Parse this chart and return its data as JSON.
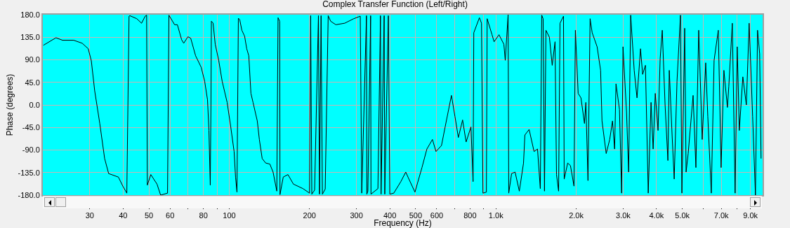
{
  "chart_data": {
    "type": "line",
    "title": "Complex Transfer Function (Left/Right)",
    "xlabel": "Frequency (Hz)",
    "ylabel": "Phase (degrees)",
    "log": "x",
    "grid": true,
    "marker": "none",
    "line_style": "solid",
    "color": "#000000",
    "xlim": [
      20,
      10000
    ],
    "xticks": [
      30,
      40,
      50,
      60,
      {
        "value": 70,
        "label": null
      },
      80,
      {
        "value": 90,
        "label": null
      },
      100,
      200,
      300,
      400,
      500,
      600,
      {
        "value": 700,
        "label": null
      },
      800,
      {
        "value": 900,
        "label": null
      },
      {
        "value": 1000,
        "label": "1.0k"
      },
      {
        "value": 2000,
        "label": "2.0k"
      },
      {
        "value": 3000,
        "label": "3.0k"
      },
      {
        "value": 4000,
        "label": "4.0k"
      },
      {
        "value": 5000,
        "label": "5.0k"
      },
      {
        "value": 6000,
        "label": null
      },
      {
        "value": 7000,
        "label": "7.0k"
      },
      {
        "value": 8000,
        "label": null
      },
      {
        "value": 9000,
        "label": "9.0k"
      }
    ],
    "ylim": [
      -180,
      180
    ],
    "yticks": [
      {
        "value": -180,
        "label": "-180.0"
      },
      {
        "value": -135,
        "label": "-135.0"
      },
      {
        "value": -90,
        "label": "-90.0"
      },
      {
        "value": -45,
        "label": "-45.0"
      },
      {
        "value": 0,
        "label": "0.0"
      },
      {
        "value": 45,
        "label": "45.0"
      },
      {
        "value": 90,
        "label": "90.0"
      },
      {
        "value": 135,
        "label": "135.0"
      },
      {
        "value": 180,
        "label": "180.0"
      }
    ],
    "x": [
      20.1,
      22.4,
      23.7,
      26.1,
      28.1,
      29.6,
      30.4,
      31.3,
      32.7,
      34.1,
      35.3,
      38.4,
      39.9,
      41.3,
      42.1,
      42.4,
      45.0,
      46.9,
      48.4,
      49.0,
      49.3,
      50.8,
      53.6,
      55.3,
      58.7,
      59.4,
      62.4,
      63.9,
      66.3,
      67.5,
      70.0,
      71.7,
      74.8,
      78.5,
      80.9,
      82.9,
      83.9,
      84.9,
      85.4,
      85.7,
      87.0,
      88.6,
      91.3,
      94.1,
      98.2,
      101.2,
      104.3,
      105.6,
      106.9,
      108.2,
      109.5,
      111.5,
      114.2,
      116.3,
      118.4,
      120.6,
      122.8,
      127.4,
      129.7,
      132.9,
      137,
      142,
      146,
      150.8,
      152.4,
      154.6,
      155,
      159.4,
      166,
      174,
      189,
      200,
      202,
      204,
      209,
      216,
      218,
      221,
      223.5,
      229,
      235,
      240,
      251,
      271,
      293,
      310,
      314,
      327,
      328,
      331,
      339,
      340,
      361,
      369,
      371,
      381,
      383,
      395,
      400,
      414,
      440,
      459,
      468,
      497,
      528,
      551,
      578,
      596,
      625,
      645,
      681,
      702,
      723,
      750,
      773,
      806,
      821,
      826,
      867,
      883,
      894,
      921,
      927,
      967,
      984,
      1027,
      1071,
      1084,
      1111,
      1117,
      1145,
      1180,
      1224,
      1269,
      1284,
      1332,
      1390,
      1432,
      1467,
      1485,
      1503,
      1521,
      1540,
      1587,
      1626,
      1666,
      1687,
      1718,
      1739,
      1792,
      1803,
      1858,
      1903,
      1962,
      1986,
      2034,
      2084,
      2148,
      2174,
      2214,
      2255,
      2296,
      2396,
      2469,
      2499,
      2591,
      2671,
      2736,
      2786,
      2820,
      2906,
      2960,
      2996,
      3088,
      3145,
      3201,
      3300,
      3381,
      3485,
      3549,
      3636,
      3725,
      3816,
      3886,
      3958,
      4054,
      4129,
      4205,
      4308,
      4414,
      4467,
      4577,
      4661,
      4775,
      4920,
      4981,
      5103,
      5165,
      5259,
      5487,
      5622,
      5759,
      5936,
      6118,
      6230,
      6421,
      6578,
      6821,
      6988,
      7159,
      7379,
      7469,
      7698,
      7887,
      8031,
      8179,
      8430,
      8690,
      8902,
      9175,
      9400,
      9572,
      9748,
      9867
    ],
    "values": [
      119,
      134,
      129,
      129,
      123,
      112,
      88,
      28,
      -37,
      -107,
      -137,
      -144,
      -162,
      -176,
      177,
      178,
      172,
      163,
      177,
      179,
      -160,
      -139,
      -158,
      -180,
      -176,
      179,
      160,
      160,
      130,
      123,
      136,
      133,
      98,
      75,
      47,
      10,
      -51,
      -160,
      0,
      167,
      163,
      121,
      89,
      47,
      5,
      -42,
      -93,
      -144,
      -174,
      173,
      170,
      149,
      137,
      112,
      98,
      23,
      5,
      -32,
      -69,
      -107,
      -116,
      -118,
      -134,
      -172,
      174,
      167,
      -179,
      -144,
      -139,
      -158,
      -167,
      -176,
      178,
      -178,
      -170,
      178,
      -178,
      178,
      -178,
      -168,
      178,
      167,
      160,
      163,
      172,
      177,
      -176,
      178,
      -178,
      -172,
      178,
      -178,
      -167,
      178,
      -178,
      178,
      -178,
      178,
      -178,
      -176,
      -153,
      -134,
      -144,
      -174,
      -125,
      -88,
      -69,
      -93,
      -81,
      -44,
      19,
      -23,
      -65,
      -30,
      -74,
      -44,
      -153,
      144,
      174,
      163,
      -176,
      -174,
      172,
      140,
      126,
      140,
      121,
      89,
      180,
      -176,
      -137,
      -134,
      -172,
      -116,
      -60,
      -49,
      -93,
      -88,
      -167,
      179,
      172,
      -172,
      149,
      135,
      79,
      126,
      -139,
      -172,
      163,
      177,
      -148,
      -116,
      -121,
      -162,
      149,
      23,
      14,
      -37,
      5,
      -151,
      172,
      144,
      116,
      69,
      -32,
      -97,
      -69,
      -32,
      -88,
      42,
      -9,
      -176,
      116,
      -14,
      -134,
      179,
      69,
      14,
      112,
      61,
      79,
      -176,
      5,
      -88,
      23,
      -51,
      93,
      149,
      0,
      -111,
      69,
      -60,
      -148,
      47,
      179,
      -176,
      153,
      -134,
      -97,
      19,
      -125,
      149,
      -69,
      84,
      -23,
      -176,
      89,
      149,
      -125,
      69,
      -5,
      37,
      163,
      -176,
      116,
      -51,
      56,
      0,
      163,
      -23,
      -180,
      149,
      102,
      -107
    ]
  }
}
